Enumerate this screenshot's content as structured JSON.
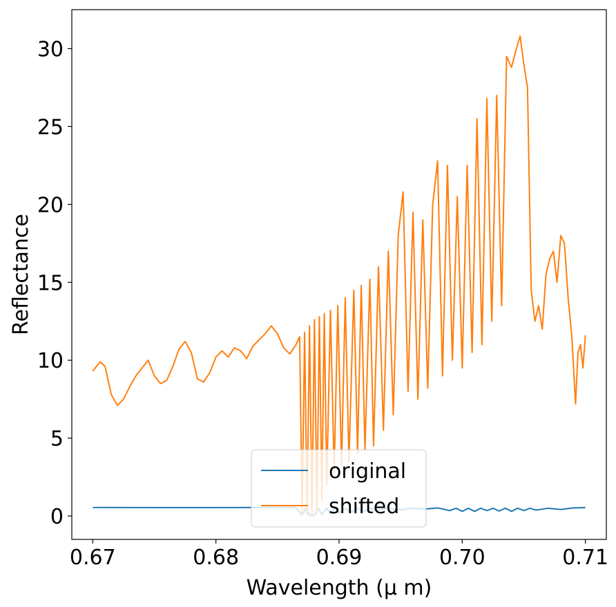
{
  "chart_data": {
    "type": "line",
    "title": "",
    "xlabel": "Wavelength (μ m)",
    "ylabel": "Reflectance",
    "xlim": [
      0.6683,
      0.7117
    ],
    "ylim": [
      -1.5,
      32.5
    ],
    "xticks": [
      {
        "value": 0.67,
        "label": "0.67"
      },
      {
        "value": 0.68,
        "label": "0.68"
      },
      {
        "value": 0.69,
        "label": "0.69"
      },
      {
        "value": 0.7,
        "label": "0.70"
      },
      {
        "value": 0.71,
        "label": "0.71"
      }
    ],
    "yticks": [
      {
        "value": 0,
        "label": "0"
      },
      {
        "value": 5,
        "label": "5"
      },
      {
        "value": 10,
        "label": "10"
      },
      {
        "value": 15,
        "label": "15"
      },
      {
        "value": 20,
        "label": "20"
      },
      {
        "value": 25,
        "label": "25"
      },
      {
        "value": 30,
        "label": "30"
      }
    ],
    "grid": false,
    "legend": "lower center",
    "series": [
      {
        "name": "original",
        "color": "#1f77b4",
        "points": [
          [
            0.67,
            0.55
          ],
          [
            0.675,
            0.54
          ],
          [
            0.68,
            0.54
          ],
          [
            0.685,
            0.55
          ],
          [
            0.6865,
            0.54
          ],
          [
            0.687,
            0.05
          ],
          [
            0.6873,
            0.5
          ],
          [
            0.6876,
            0.05
          ],
          [
            0.688,
            0.05
          ],
          [
            0.6883,
            0.5
          ],
          [
            0.6886,
            0.1
          ],
          [
            0.689,
            0.5
          ],
          [
            0.6893,
            0.15
          ],
          [
            0.6897,
            0.5
          ],
          [
            0.69,
            0.2
          ],
          [
            0.6905,
            0.5
          ],
          [
            0.691,
            0.25
          ],
          [
            0.6915,
            0.5
          ],
          [
            0.692,
            0.3
          ],
          [
            0.6925,
            0.5
          ],
          [
            0.693,
            0.35
          ],
          [
            0.694,
            0.5
          ],
          [
            0.695,
            0.4
          ],
          [
            0.696,
            0.5
          ],
          [
            0.697,
            0.45
          ],
          [
            0.698,
            0.52
          ],
          [
            0.699,
            0.35
          ],
          [
            0.6995,
            0.5
          ],
          [
            0.7,
            0.3
          ],
          [
            0.7005,
            0.5
          ],
          [
            0.701,
            0.3
          ],
          [
            0.7015,
            0.5
          ],
          [
            0.702,
            0.35
          ],
          [
            0.7025,
            0.5
          ],
          [
            0.703,
            0.32
          ],
          [
            0.7035,
            0.5
          ],
          [
            0.704,
            0.3
          ],
          [
            0.7045,
            0.5
          ],
          [
            0.705,
            0.35
          ],
          [
            0.7055,
            0.5
          ],
          [
            0.706,
            0.38
          ],
          [
            0.707,
            0.5
          ],
          [
            0.708,
            0.42
          ],
          [
            0.709,
            0.52
          ],
          [
            0.71,
            0.54
          ]
        ]
      },
      {
        "name": "shifted",
        "color": "#ff7f0e",
        "points": [
          [
            0.67,
            9.3
          ],
          [
            0.6703,
            9.6
          ],
          [
            0.6706,
            9.9
          ],
          [
            0.671,
            9.6
          ],
          [
            0.6715,
            7.8
          ],
          [
            0.672,
            7.1
          ],
          [
            0.6725,
            7.5
          ],
          [
            0.673,
            8.3
          ],
          [
            0.6735,
            9.0
          ],
          [
            0.674,
            9.5
          ],
          [
            0.6745,
            10.0
          ],
          [
            0.675,
            9.0
          ],
          [
            0.6755,
            8.5
          ],
          [
            0.676,
            8.7
          ],
          [
            0.6765,
            9.6
          ],
          [
            0.677,
            10.7
          ],
          [
            0.6775,
            11.2
          ],
          [
            0.678,
            10.5
          ],
          [
            0.6785,
            8.8
          ],
          [
            0.679,
            8.6
          ],
          [
            0.6795,
            9.2
          ],
          [
            0.68,
            10.2
          ],
          [
            0.6805,
            10.6
          ],
          [
            0.681,
            10.2
          ],
          [
            0.6815,
            10.8
          ],
          [
            0.682,
            10.6
          ],
          [
            0.6825,
            10.1
          ],
          [
            0.683,
            10.9
          ],
          [
            0.6835,
            11.3
          ],
          [
            0.684,
            11.7
          ],
          [
            0.6845,
            12.2
          ],
          [
            0.685,
            11.7
          ],
          [
            0.6855,
            10.8
          ],
          [
            0.686,
            10.4
          ],
          [
            0.6865,
            11.0
          ],
          [
            0.6868,
            11.5
          ],
          [
            0.687,
            0.1
          ],
          [
            0.6872,
            11.8
          ],
          [
            0.6874,
            0.1
          ],
          [
            0.6876,
            12.2
          ],
          [
            0.6878,
            0.1
          ],
          [
            0.688,
            12.6
          ],
          [
            0.6882,
            0.2
          ],
          [
            0.6884,
            12.8
          ],
          [
            0.6886,
            1.0
          ],
          [
            0.6888,
            13.0
          ],
          [
            0.689,
            2.0
          ],
          [
            0.6893,
            13.2
          ],
          [
            0.6896,
            2.8
          ],
          [
            0.6899,
            13.5
          ],
          [
            0.6902,
            3.2
          ],
          [
            0.6905,
            14.0
          ],
          [
            0.6908,
            3.5
          ],
          [
            0.6912,
            14.5
          ],
          [
            0.6915,
            4.0
          ],
          [
            0.6918,
            14.8
          ],
          [
            0.6921,
            4.2
          ],
          [
            0.6925,
            15.2
          ],
          [
            0.6928,
            4.5
          ],
          [
            0.6932,
            16.0
          ],
          [
            0.6936,
            5.5
          ],
          [
            0.694,
            17.0
          ],
          [
            0.6944,
            6.5
          ],
          [
            0.6948,
            18.0
          ],
          [
            0.6952,
            20.8
          ],
          [
            0.6956,
            8.0
          ],
          [
            0.696,
            19.5
          ],
          [
            0.6964,
            7.5
          ],
          [
            0.6968,
            19.0
          ],
          [
            0.6972,
            8.2
          ],
          [
            0.6976,
            20.0
          ],
          [
            0.698,
            22.8
          ],
          [
            0.6984,
            9.0
          ],
          [
            0.6988,
            22.5
          ],
          [
            0.6992,
            10.0
          ],
          [
            0.6996,
            20.5
          ],
          [
            0.7,
            9.5
          ],
          [
            0.7004,
            22.5
          ],
          [
            0.7008,
            10.5
          ],
          [
            0.7012,
            25.5
          ],
          [
            0.7016,
            11.0
          ],
          [
            0.702,
            26.8
          ],
          [
            0.7024,
            12.5
          ],
          [
            0.7028,
            27.0
          ],
          [
            0.7032,
            13.5
          ],
          [
            0.7036,
            29.5
          ],
          [
            0.704,
            28.8
          ],
          [
            0.7044,
            30.0
          ],
          [
            0.7047,
            30.8
          ],
          [
            0.705,
            29.0
          ],
          [
            0.7053,
            27.5
          ],
          [
            0.7056,
            14.5
          ],
          [
            0.7059,
            12.5
          ],
          [
            0.7062,
            13.5
          ],
          [
            0.7065,
            12.0
          ],
          [
            0.7068,
            15.5
          ],
          [
            0.7071,
            16.5
          ],
          [
            0.7074,
            17.0
          ],
          [
            0.7077,
            15.0
          ],
          [
            0.708,
            18.0
          ],
          [
            0.7083,
            17.5
          ],
          [
            0.7086,
            14.0
          ],
          [
            0.7089,
            11.5
          ],
          [
            0.7092,
            7.2
          ],
          [
            0.7094,
            10.5
          ],
          [
            0.7096,
            11.0
          ],
          [
            0.7098,
            9.5
          ],
          [
            0.71,
            11.6
          ]
        ]
      }
    ]
  }
}
